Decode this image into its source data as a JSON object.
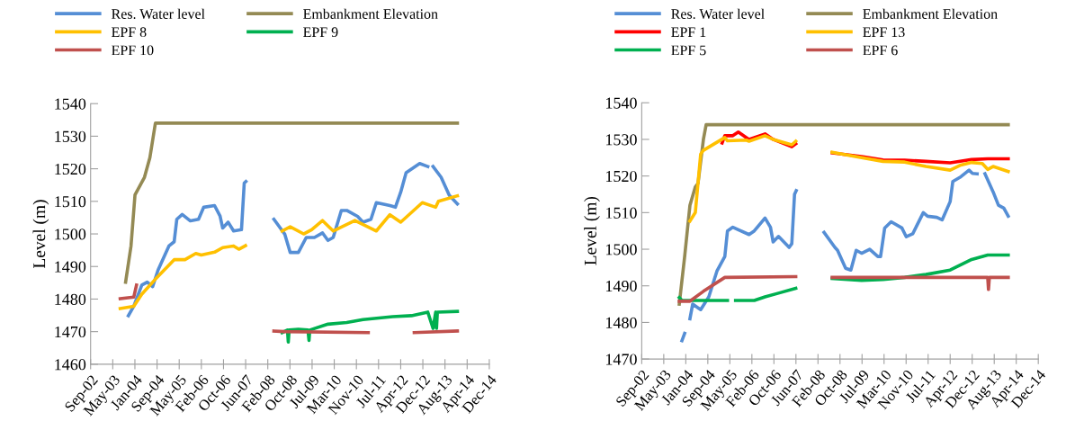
{
  "chart_data": [
    {
      "type": "line",
      "ylabel": "Level (m)",
      "legend": "top",
      "grid": false,
      "line_style": "solid",
      "marker": "none",
      "xlim": [
        "2002-09-01",
        "2014-12-27"
      ],
      "xticks": [
        {
          "value": "2002-09-01",
          "label": "Sep-02"
        },
        {
          "value": "2003-05-09",
          "label": "May-03"
        },
        {
          "value": "2004-01-14",
          "label": "Jan-04"
        },
        {
          "value": "2004-09-20",
          "label": "Sep-04"
        },
        {
          "value": "2005-05-28",
          "label": "May-05"
        },
        {
          "value": "2006-02-02",
          "label": "Feb-06"
        },
        {
          "value": "2006-10-10",
          "label": "Oct-06"
        },
        {
          "value": "2007-06-17",
          "label": "Jun-07"
        },
        {
          "value": "2008-02-22",
          "label": "Feb-08"
        },
        {
          "value": "2008-10-29",
          "label": "Oct-08"
        },
        {
          "value": "2009-07-06",
          "label": "Jul-09"
        },
        {
          "value": "2010-03-13",
          "label": "Mar-10"
        },
        {
          "value": "2010-11-18",
          "label": "Nov-10"
        },
        {
          "value": "2011-07-26",
          "label": "Jul-11"
        },
        {
          "value": "2012-04-01",
          "label": "Apr-12"
        },
        {
          "value": "2012-12-07",
          "label": "Dec-12"
        },
        {
          "value": "2013-08-14",
          "label": "Aug-13"
        },
        {
          "value": "2014-04-21",
          "label": "Apr-14"
        },
        {
          "value": "2014-12-27",
          "label": "Dec-14"
        }
      ],
      "ylim": [
        1460,
        1540
      ],
      "yticks": [
        1460,
        1470,
        1480,
        1490,
        1500,
        1510,
        1520,
        1530,
        1540
      ],
      "series": [
        {
          "name": "Res. Water level",
          "color": "#558ed5",
          "x": [
            "2003-11-01",
            "2004-01-01",
            "2004-04-01",
            "2004-06-01",
            "2004-08-01",
            "2004-10-01",
            "2005-02-01",
            "2005-04-01",
            "2005-05-01",
            "2005-07-01",
            "2005-10-01",
            "2006-01-01",
            "2006-03-01",
            "2006-07-01",
            "2006-09-01",
            "2006-10-01",
            "2006-12-01",
            "2007-02-01",
            "2007-05-01",
            "2007-06-01",
            "2007-06-20",
            "2008-01-01",
            "2008-05-01",
            "2008-09-01",
            "2008-11-01",
            "2009-02-01",
            "2009-05-01",
            "2009-08-01",
            "2009-11-01",
            "2010-01-01",
            "2010-03-01",
            "2010-06-01",
            "2010-08-01",
            "2010-12-01",
            "2011-02-01",
            "2011-05-01",
            "2011-07-01",
            "2011-12-01",
            "2012-02-01",
            "2012-04-01",
            "2012-06-01",
            "2012-11-01",
            "2013-02-01",
            "2013-03-01",
            "2013-04-01",
            "2013-07-01",
            "2013-10-01",
            "2014-01-01"
          ],
          "values": [
            1474.9,
            1477.8,
            1484.3,
            1485.2,
            1483.8,
            1488.9,
            1496.3,
            1497.6,
            1504.5,
            1506,
            1504,
            1504.5,
            1508.2,
            1508.7,
            1505.5,
            1501.8,
            1503.6,
            1500.9,
            1501.3,
            1515.6,
            1516.1,
            null,
            1504.5,
            1499.9,
            1494.3,
            1494.3,
            1498.9,
            1498.9,
            1500.3,
            1498,
            1498.9,
            1507.2,
            1507.2,
            1505.4,
            1503.6,
            1504.5,
            1509.6,
            1508.7,
            1508.2,
            1512.8,
            1518.8,
            1521.6,
            1520.7,
            null,
            1520.7,
            1517.4,
            1511.9,
            1509.2
          ]
        },
        {
          "name": "Embankment Elevation",
          "color": "#948a54",
          "x": [
            "2003-10-01",
            "2003-12-01",
            "2004-01-15",
            "2004-05-01",
            "2004-07-01",
            "2004-09-01",
            "2014-01-01"
          ],
          "values": [
            1485.2,
            1496.3,
            1512,
            1517.4,
            1523.4,
            1534,
            1534
          ]
        },
        {
          "name": "EPF 8",
          "color": "#ffc000",
          "x": [
            "2003-08-01",
            "2004-01-01",
            "2004-04-01",
            "2004-09-01",
            "2005-04-01",
            "2005-08-01",
            "2005-12-01",
            "2006-02-01",
            "2006-07-01",
            "2006-10-01",
            "2007-02-01",
            "2007-04-01",
            "2007-06-15",
            "2008-01-01",
            "2008-08-01",
            "2008-11-01",
            "2009-04-01",
            "2009-07-01",
            "2009-11-01",
            "2010-03-01",
            "2010-11-01",
            "2011-07-01",
            "2011-12-01",
            "2012-04-01",
            "2012-12-01",
            "2013-05-01",
            "2013-06-01",
            "2014-01-01"
          ],
          "values": [
            1477.1,
            1477.8,
            1481.5,
            1486.1,
            1492.1,
            1492.1,
            1494,
            1493.5,
            1494.4,
            1495.8,
            1496.3,
            1495.3,
            1496.4,
            null,
            1500.9,
            1502.2,
            1500,
            1501.3,
            1504.1,
            1500.9,
            1504.1,
            1500.9,
            1505.9,
            1503.6,
            1509.6,
            1508.2,
            1510,
            1511.7
          ]
        },
        {
          "name": "EPF 9",
          "color": "#00b050",
          "x": [
            "2008-08-01",
            "2008-10-01",
            "2008-10-10",
            "2008-10-20",
            "2009-02-01",
            "2009-05-20",
            "2009-06-01",
            "2009-06-10",
            "2010-01-01",
            "2010-08-01",
            "2011-02-01",
            "2012-01-01",
            "2012-08-01",
            "2013-02-01",
            "2013-04-01",
            "2013-05-01",
            "2013-05-10",
            "2013-05-20",
            "2014-01-01"
          ],
          "values": [
            1469.7,
            1470.5,
            1466.8,
            1470.5,
            1470.7,
            1470.5,
            1467.3,
            1470.5,
            1472.3,
            1472.8,
            1473.7,
            1474.6,
            1474.9,
            1476,
            1471,
            1476,
            1471,
            1476,
            1476.2
          ]
        },
        {
          "name": "EPF 10",
          "color": "#c0504d",
          "x": [
            "2003-08-01",
            "2004-01-01",
            "2004-02-01",
            "2004-03-01",
            "2008-05-01",
            "2008-09-01",
            "2011-04-01",
            "2012-01-01",
            "2012-09-01",
            "2014-01-01"
          ],
          "values": [
            1480.1,
            1480.6,
            1484.3,
            null,
            1470.2,
            1470,
            1469.7,
            null,
            1469.7,
            1470.2
          ]
        }
      ]
    },
    {
      "type": "line",
      "ylabel": "Level (m)",
      "legend": "top",
      "grid": false,
      "line_style": "solid",
      "marker": "none",
      "xlim": [
        "2002-09-01",
        "2014-12-27"
      ],
      "xticks": [
        {
          "value": "2002-09-01",
          "label": "Sep-02"
        },
        {
          "value": "2003-05-09",
          "label": "May-03"
        },
        {
          "value": "2004-01-14",
          "label": "Jan-04"
        },
        {
          "value": "2004-09-20",
          "label": "Sep-04"
        },
        {
          "value": "2005-05-28",
          "label": "May-05"
        },
        {
          "value": "2006-02-02",
          "label": "Feb-06"
        },
        {
          "value": "2006-10-10",
          "label": "Oct-06"
        },
        {
          "value": "2007-06-17",
          "label": "Jun-07"
        },
        {
          "value": "2008-02-22",
          "label": "Feb-08"
        },
        {
          "value": "2008-10-29",
          "label": "Oct-08"
        },
        {
          "value": "2009-07-06",
          "label": "Jul-09"
        },
        {
          "value": "2010-03-13",
          "label": "Mar-10"
        },
        {
          "value": "2010-11-18",
          "label": "Nov-10"
        },
        {
          "value": "2011-07-26",
          "label": "Jul-11"
        },
        {
          "value": "2012-04-01",
          "label": "Apr-12"
        },
        {
          "value": "2012-12-07",
          "label": "Dec-12"
        },
        {
          "value": "2013-08-14",
          "label": "Aug-13"
        },
        {
          "value": "2014-04-21",
          "label": "Apr-14"
        },
        {
          "value": "2014-12-27",
          "label": "Dec-14"
        }
      ],
      "ylim": [
        1470,
        1540
      ],
      "yticks": [
        1470,
        1480,
        1490,
        1500,
        1510,
        1520,
        1530,
        1540
      ],
      "series": [
        {
          "name": "Res. Water level",
          "color": "#558ed5",
          "x": [
            "2003-12-01",
            "2004-01-01",
            "2004-02-01",
            "2004-03-01",
            "2004-04-01",
            "2004-06-01",
            "2004-07-01",
            "2004-10-01",
            "2005-01-01",
            "2005-04-01",
            "2005-05-01",
            "2005-07-01",
            "2006-01-01",
            "2006-03-01",
            "2006-07-01",
            "2006-09-01",
            "2006-10-01",
            "2006-12-01",
            "2007-04-01",
            "2007-05-01",
            "2007-06-01",
            "2007-06-20",
            "2008-01-01",
            "2008-05-01",
            "2008-09-01",
            "2008-10-01",
            "2009-01-01",
            "2009-03-01",
            "2009-05-01",
            "2009-07-01",
            "2009-10-01",
            "2010-01-01",
            "2010-02-01",
            "2010-03-20",
            "2010-06-01",
            "2010-10-01",
            "2010-11-20",
            "2011-02-01",
            "2011-06-01",
            "2011-07-20",
            "2011-11-01",
            "2012-01-01",
            "2012-04-01",
            "2012-05-01",
            "2012-08-01",
            "2012-11-01",
            "2012-12-10",
            "2013-02-01",
            "2013-03-01",
            "2013-05-01",
            "2013-08-01",
            "2013-10-01",
            "2013-12-01",
            "2014-01-20"
          ],
          "values": [
            1475,
            1477,
            null,
            1481,
            1485,
            1484,
            1483.5,
            1487,
            1494,
            1498,
            1505,
            1506,
            1504,
            1505,
            1508.5,
            1506,
            1502,
            1503.5,
            1500.5,
            1501.5,
            1515,
            1516,
            null,
            1504.6,
            1500.5,
            1499.7,
            1494.8,
            1494.3,
            1499.7,
            1498.9,
            1500,
            1498,
            1498,
            1505.8,
            1507.5,
            1505.8,
            1503.4,
            1504.2,
            1510,
            1509,
            1508.7,
            1508,
            1513,
            1518.5,
            1519.8,
            1521.6,
            1520.7,
            1520.6,
            null,
            1520.6,
            1515.7,
            1512,
            1511.2,
            1509
          ]
        },
        {
          "name": "Embankment Elevation",
          "color": "#948a54",
          "x": [
            "2003-11-01",
            "2004-01-01",
            "2004-03-01",
            "2004-05-01",
            "2004-06-01",
            "2004-08-01",
            "2004-09-01",
            "2014-01-20"
          ],
          "values": [
            1485,
            1498,
            1512,
            1517,
            1518,
            1530,
            1534,
            1534
          ]
        },
        {
          "name": "EPF 1",
          "color": "#ff0000",
          "x": [
            "2005-03-01",
            "2005-04-01",
            "2005-07-01",
            "2005-09-01",
            "2005-12-01",
            "2006-01-01",
            "2006-07-01",
            "2006-10-01",
            "2007-05-01",
            "2007-06-15",
            "2008-01-01",
            "2008-08-01",
            "2009-07-01",
            "2010-03-01",
            "2010-11-01",
            "2011-07-01",
            "2012-04-01",
            "2012-12-01",
            "2013-06-01",
            "2014-01-20"
          ],
          "values": [
            1529,
            1531,
            1531,
            1532,
            1530.5,
            1530,
            1531.5,
            1530,
            1528,
            1528.8,
            null,
            1526.3,
            1525.3,
            1524.4,
            1524.3,
            1524,
            1523.6,
            1524.5,
            1524.7,
            1524.7
          ]
        },
        {
          "name": "EPF 13",
          "color": "#ffc000",
          "x": [
            "2004-03-01",
            "2004-05-01",
            "2004-07-01",
            "2004-08-01",
            "2005-04-01",
            "2005-05-01",
            "2005-12-01",
            "2006-01-01",
            "2006-07-01",
            "2006-10-01",
            "2007-05-01",
            "2007-06-15",
            "2008-01-01",
            "2008-08-01",
            "2009-07-01",
            "2010-03-01",
            "2010-11-01",
            "2011-07-01",
            "2012-04-01",
            "2012-08-01",
            "2012-12-01",
            "2013-04-01",
            "2013-06-01",
            "2013-08-01",
            "2014-01-20"
          ],
          "values": [
            1507.7,
            1510,
            1526,
            1527,
            1530.5,
            1529.6,
            1529.8,
            1529.5,
            1531,
            1530,
            1528.5,
            1529.5,
            null,
            1526.5,
            1525,
            1524,
            1523.8,
            1522.6,
            1521.6,
            1523,
            1523.7,
            1523.4,
            1521.8,
            1522.6,
            1521.2
          ]
        },
        {
          "name": "EPF 5",
          "color": "#00b050",
          "x": [
            "2003-11-01",
            "2003-12-01",
            "2005-05-01",
            "2005-06-01",
            "2005-08-01",
            "2006-03-01",
            "2006-07-01",
            "2006-12-01",
            "2007-06-15",
            "2008-01-01",
            "2008-08-01",
            "2009-07-01",
            "2010-03-01",
            "2010-11-01",
            "2011-07-01",
            "2012-04-01",
            "2012-12-01",
            "2013-06-01",
            "2014-01-20"
          ],
          "values": [
            1486.8,
            1486,
            1486,
            null,
            1486,
            1486,
            1487,
            1488,
            1489.3,
            null,
            1492,
            1491.5,
            1491.7,
            1492.3,
            1493.1,
            1494.3,
            1497.2,
            1498.4,
            1498.4
          ]
        },
        {
          "name": "EPF 6",
          "color": "#c0504d",
          "x": [
            "2003-11-01",
            "2004-03-01",
            "2004-08-01",
            "2005-04-01",
            "2007-06-15",
            "2008-01-01",
            "2008-08-01",
            "2013-06-01",
            "2013-06-10",
            "2013-06-20",
            "2014-01-20"
          ],
          "values": [
            1485.8,
            1485.8,
            1488.5,
            1492.3,
            1492.5,
            null,
            1492.3,
            1492.3,
            1489,
            1492.3,
            1492.3
          ]
        }
      ]
    }
  ]
}
